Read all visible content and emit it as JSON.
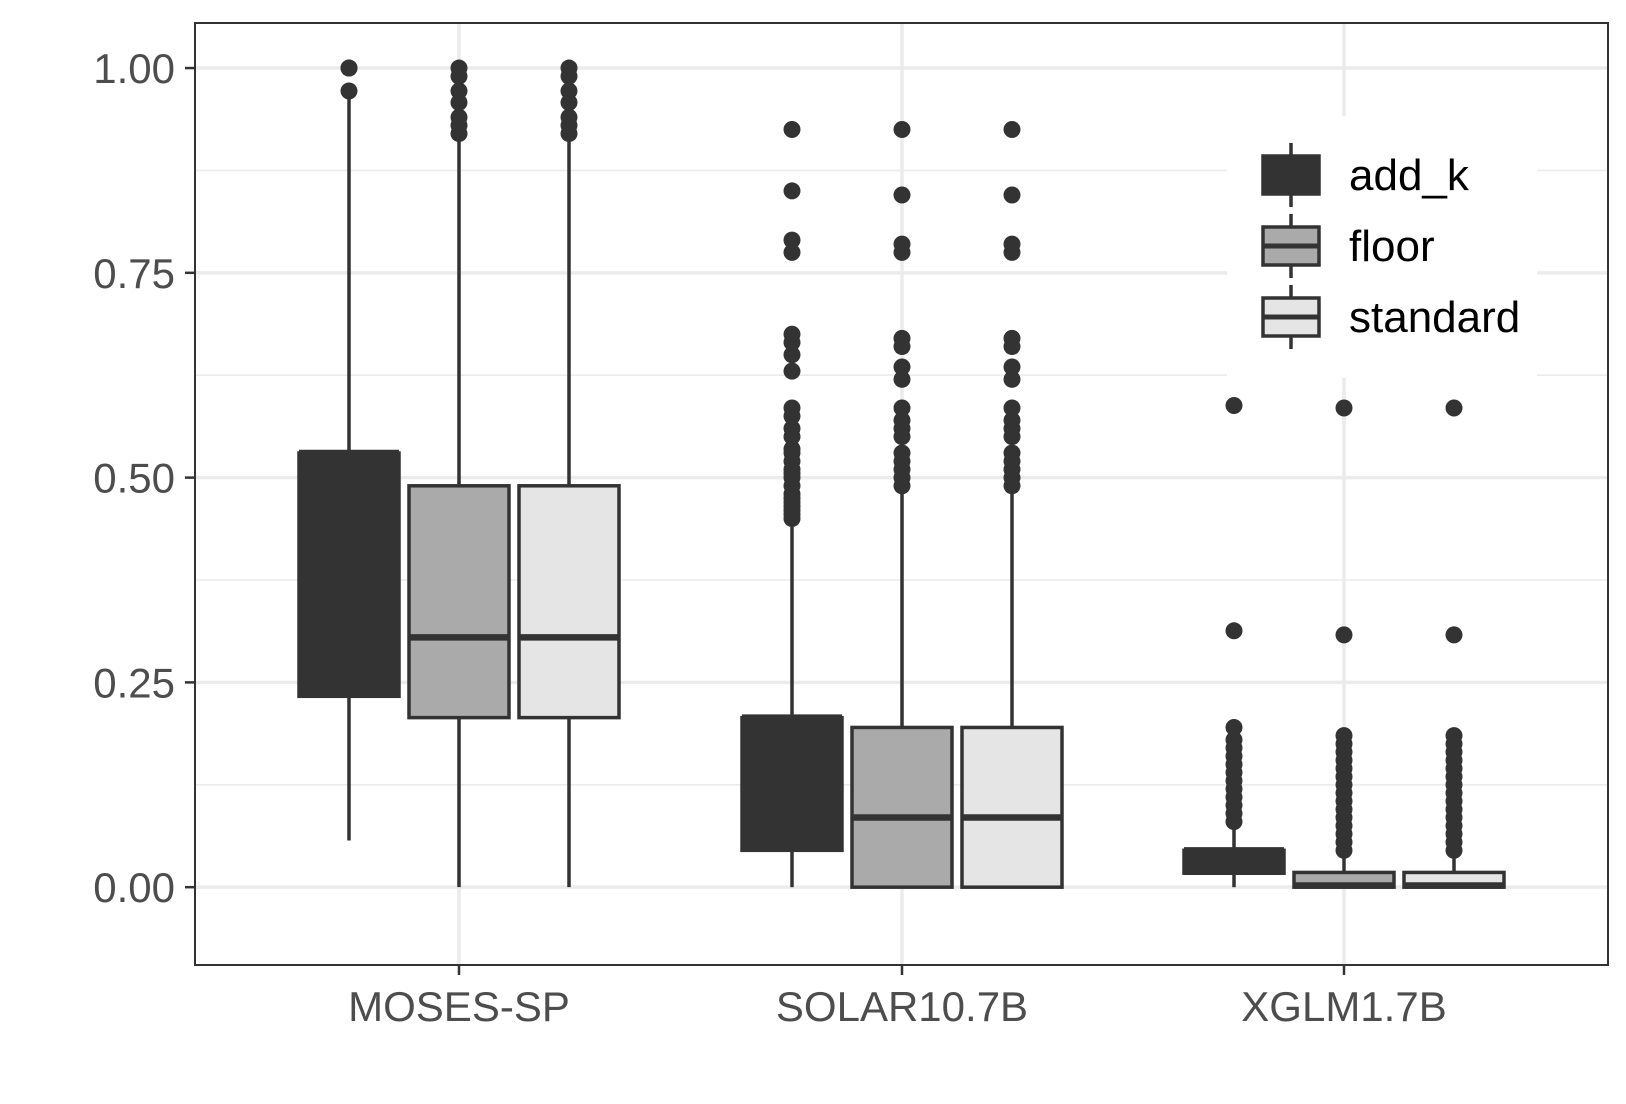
{
  "chart_data": {
    "type": "boxplot",
    "categories": [
      "MOSES-SP",
      "SOLAR10.7B",
      "XGLM1.7B"
    ],
    "title": "",
    "xlabel": "",
    "ylabel": "",
    "ylim": [
      -0.095,
      1.055
    ],
    "yticks": [
      0.0,
      0.25,
      0.5,
      0.75,
      1.0
    ],
    "ytick_labels": [
      "0.00",
      "0.25",
      "0.50",
      "0.75",
      "1.00"
    ],
    "grid": true,
    "legend_position": "top-right",
    "series": [
      {
        "name": "add_k",
        "color": "#333333",
        "boxes": [
          {
            "min": 0.057,
            "q1": 0.233,
            "median": 0.53,
            "q3": 0.53,
            "max": 0.962,
            "outliers": [
              0.972,
              1.0,
              1.0
            ]
          },
          {
            "min": 0.0,
            "q1": 0.045,
            "median": 0.207,
            "q3": 0.207,
            "max": 0.44,
            "outliers": [
              0.45,
              0.455,
              0.46,
              0.465,
              0.47,
              0.475,
              0.48,
              0.49,
              0.5,
              0.505,
              0.51,
              0.52,
              0.53,
              0.535,
              0.55,
              0.56,
              0.575,
              0.585,
              0.63,
              0.65,
              0.665,
              0.675,
              0.775,
              0.79,
              0.85,
              0.925
            ]
          },
          {
            "min": 0.0,
            "q1": 0.017,
            "median": 0.045,
            "q3": 0.045,
            "max": 0.07,
            "outliers": [
              0.08,
              0.09,
              0.1,
              0.11,
              0.12,
              0.13,
              0.14,
              0.15,
              0.16,
              0.17,
              0.18,
              0.195,
              0.313,
              0.588
            ]
          }
        ]
      },
      {
        "name": "floor",
        "color": "#aaaaaa",
        "boxes": [
          {
            "min": 0.0,
            "q1": 0.207,
            "median": 0.305,
            "q3": 0.49,
            "max": 0.91,
            "outliers": [
              0.92,
              0.93,
              0.94,
              0.958,
              0.972,
              0.99,
              1.0
            ]
          },
          {
            "min": 0.0,
            "q1": 0.0,
            "median": 0.085,
            "q3": 0.195,
            "max": 0.48,
            "outliers": [
              0.49,
              0.5,
              0.51,
              0.52,
              0.53,
              0.55,
              0.56,
              0.57,
              0.585,
              0.62,
              0.635,
              0.66,
              0.67,
              0.775,
              0.785,
              0.845,
              0.925
            ]
          },
          {
            "min": 0.0,
            "q1": 0.0,
            "median": 0.002,
            "q3": 0.018,
            "max": 0.035,
            "outliers": [
              0.045,
              0.055,
              0.065,
              0.075,
              0.085,
              0.095,
              0.105,
              0.115,
              0.125,
              0.135,
              0.145,
              0.155,
              0.165,
              0.175,
              0.185,
              0.308,
              0.585
            ]
          }
        ]
      },
      {
        "name": "standard",
        "color": "#e5e5e5",
        "boxes": [
          {
            "min": 0.0,
            "q1": 0.207,
            "median": 0.305,
            "q3": 0.49,
            "max": 0.91,
            "outliers": [
              0.92,
              0.93,
              0.94,
              0.958,
              0.972,
              0.99,
              1.0
            ]
          },
          {
            "min": 0.0,
            "q1": 0.0,
            "median": 0.085,
            "q3": 0.195,
            "max": 0.48,
            "outliers": [
              0.49,
              0.5,
              0.51,
              0.52,
              0.53,
              0.55,
              0.56,
              0.57,
              0.585,
              0.62,
              0.635,
              0.66,
              0.67,
              0.775,
              0.785,
              0.845,
              0.925
            ]
          },
          {
            "min": 0.0,
            "q1": 0.0,
            "median": 0.002,
            "q3": 0.018,
            "max": 0.035,
            "outliers": [
              0.045,
              0.055,
              0.065,
              0.075,
              0.085,
              0.095,
              0.105,
              0.115,
              0.125,
              0.135,
              0.145,
              0.155,
              0.165,
              0.175,
              0.185,
              0.308,
              0.585
            ]
          }
        ]
      }
    ]
  }
}
